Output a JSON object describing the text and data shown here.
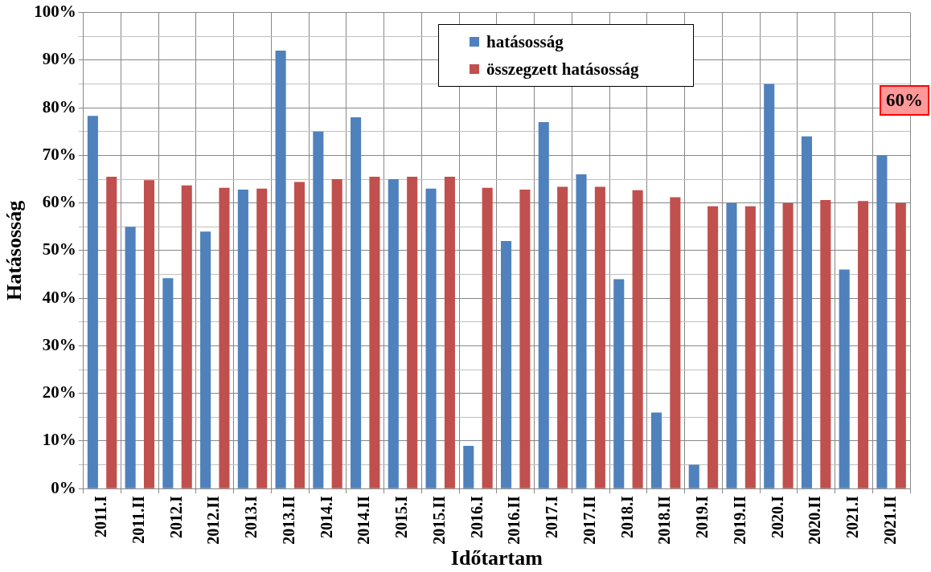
{
  "chart_data": {
    "type": "bar",
    "xlabel": "Időtartam",
    "ylabel": "Hatásosság",
    "categories": [
      "2011.I",
      "2011.II",
      "2012.I",
      "2012.II",
      "2013.I",
      "2013.II",
      "2014.I",
      "2014.II",
      "2015.I",
      "2015.II",
      "2016.I",
      "2016.II",
      "2017.I",
      "2017.II",
      "2018.I",
      "2018.II",
      "2019.I",
      "2019.II",
      "2020.I",
      "2020.II",
      "2021.I",
      "2021.II"
    ],
    "series": [
      {
        "name": "hatásosság",
        "color": "#4f81bd",
        "values": [
          78.3,
          55,
          44.2,
          54,
          62.8,
          92,
          75,
          78,
          65,
          63,
          9,
          52,
          77,
          66,
          44,
          16,
          5,
          60,
          85,
          74,
          46,
          70
        ]
      },
      {
        "name": "összegzett hatásosság",
        "color": "#c0504d",
        "values": [
          65.5,
          64.8,
          63.7,
          63.2,
          63,
          64.4,
          65,
          65.5,
          65.5,
          65.5,
          63.2,
          62.8,
          63.4,
          63.4,
          62.7,
          61.2,
          59.3,
          59.3,
          60,
          60.6,
          60.4,
          60
        ]
      }
    ],
    "ylim": [
      0,
      100
    ],
    "yticks": [
      {
        "value": 0,
        "label": "0%"
      },
      {
        "value": 5,
        "label": null
      },
      {
        "value": 10,
        "label": "10%"
      },
      {
        "value": 15,
        "label": null
      },
      {
        "value": 20,
        "label": "20%"
      },
      {
        "value": 25,
        "label": null
      },
      {
        "value": 30,
        "label": "30%"
      },
      {
        "value": 35,
        "label": null
      },
      {
        "value": 40,
        "label": "40%"
      },
      {
        "value": 45,
        "label": null
      },
      {
        "value": 50,
        "label": "50%"
      },
      {
        "value": 55,
        "label": null
      },
      {
        "value": 60,
        "label": "60%"
      },
      {
        "value": 65,
        "label": null
      },
      {
        "value": 70,
        "label": "70%"
      },
      {
        "value": 75,
        "label": null
      },
      {
        "value": 80,
        "label": "80%"
      },
      {
        "value": 85,
        "label": null
      },
      {
        "value": 90,
        "label": "90%"
      },
      {
        "value": 95,
        "label": null
      },
      {
        "value": 100,
        "label": "100%"
      }
    ],
    "grid": true,
    "legend": "top",
    "annotations": [
      "60%"
    ]
  }
}
